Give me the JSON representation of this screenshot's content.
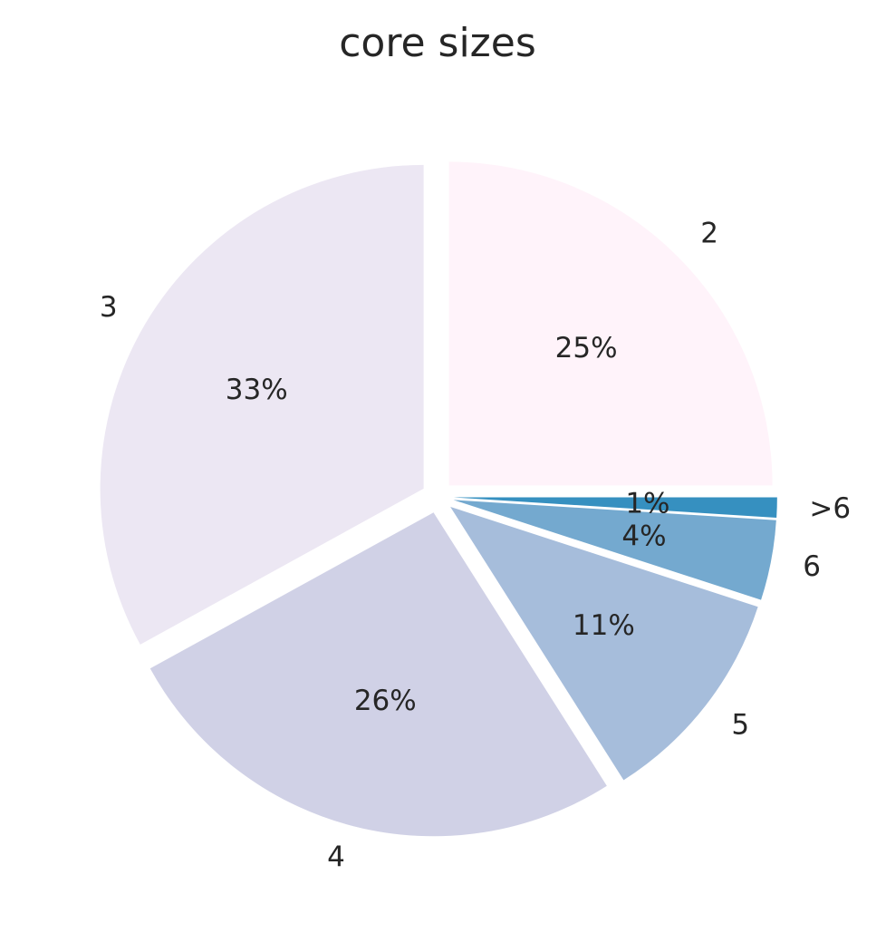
{
  "chart_data": {
    "type": "pie",
    "title": "core sizes",
    "slices": [
      {
        "label": "2",
        "value": 25,
        "pct_label": "25%",
        "color": "#fff3fa"
      },
      {
        "label": "3",
        "value": 33,
        "pct_label": "33%",
        "color": "#ece7f3"
      },
      {
        "label": "4",
        "value": 26,
        "pct_label": "26%",
        "color": "#d0d1e6"
      },
      {
        "label": "5",
        "value": 11,
        "pct_label": "11%",
        "color": "#a6bddb"
      },
      {
        "label": "6",
        "value": 4,
        "pct_label": "4%",
        "color": "#74a9cf"
      },
      {
        "label": ">6",
        "value": 1,
        "pct_label": "1%",
        "color": "#3690c0"
      }
    ],
    "start_angle_deg": 0,
    "direction": "counterclockwise",
    "exploded": true,
    "legend": "none"
  }
}
